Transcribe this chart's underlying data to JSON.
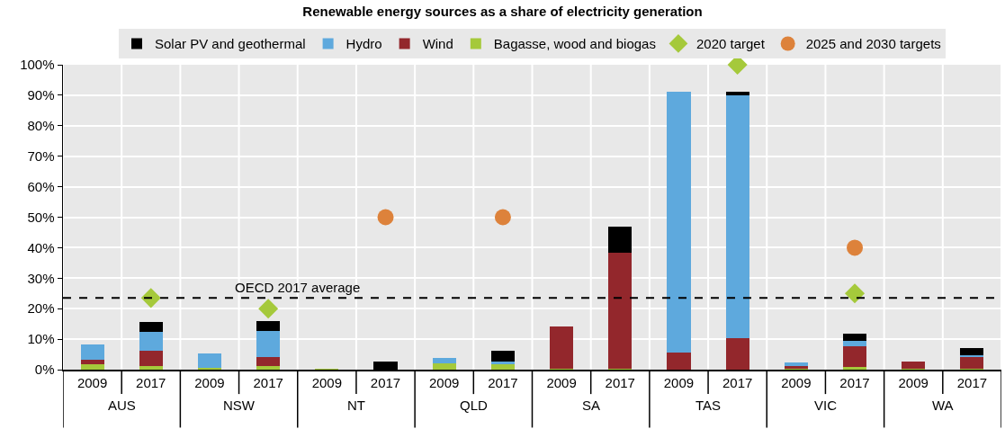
{
  "chart_data": {
    "type": "bar",
    "title": "Renewable energy sources as a share of electricity generation",
    "categories": [
      "2009",
      "2017",
      "2009",
      "2017",
      "2009",
      "2017",
      "2009",
      "2017",
      "2009",
      "2017",
      "2009",
      "2017",
      "2009",
      "2017",
      "2009",
      "2017"
    ],
    "stacked": true,
    "series": [
      {
        "name": "Bagasse, wood and biogas",
        "color": "#a5c93b",
        "values": [
          1.8,
          1.2,
          0.6,
          1.3,
          0.2,
          0,
          2.2,
          1.8,
          0.3,
          0.4,
          0,
          0,
          0.3,
          1.0,
          0.2,
          0.2
        ]
      },
      {
        "name": "Wind",
        "color": "#93272c",
        "values": [
          1.3,
          4.9,
          0,
          2.7,
          0,
          0,
          0,
          0,
          13.8,
          38,
          5.7,
          10.3,
          1.0,
          6.8,
          2.6,
          4.0
        ]
      },
      {
        "name": "Hydro",
        "color": "#5ea9dd",
        "values": [
          5.1,
          6.4,
          4.6,
          8.7,
          0,
          0,
          1.5,
          1.0,
          0,
          0,
          85.4,
          79.8,
          1.0,
          1.7,
          0,
          0.5
        ]
      },
      {
        "name": "Solar PV and geothermal",
        "color": "#000000",
        "values": [
          0,
          3.1,
          0,
          3.2,
          0,
          2.6,
          0,
          3.4,
          0,
          8.6,
          0,
          1.1,
          0,
          2.2,
          0,
          2.3
        ]
      },
      {
        "name": "2020 target",
        "type": "scatter",
        "marker": "diamond",
        "color": "#a5c93b",
        "values": [
          null,
          23.5,
          null,
          20,
          null,
          null,
          null,
          null,
          null,
          null,
          null,
          100,
          null,
          25,
          null,
          null
        ]
      },
      {
        "name": "2025 and 2030 targets",
        "type": "scatter",
        "marker": "circle",
        "color": "#dd823b",
        "values": [
          null,
          null,
          null,
          null,
          null,
          50,
          null,
          50,
          null,
          null,
          null,
          null,
          null,
          40,
          null,
          null
        ]
      }
    ],
    "ylim": [
      0,
      100
    ],
    "yticks": [
      {
        "value": 0,
        "label": "0%"
      },
      {
        "value": 10,
        "label": "10%"
      },
      {
        "value": 20,
        "label": "20%"
      },
      {
        "value": 30,
        "label": "30%"
      },
      {
        "value": 40,
        "label": "40%"
      },
      {
        "value": 50,
        "label": "50%"
      },
      {
        "value": 60,
        "label": "60%"
      },
      {
        "value": 70,
        "label": "70%"
      },
      {
        "value": 80,
        "label": "80%"
      },
      {
        "value": 90,
        "label": "90%"
      },
      {
        "value": 100,
        "label": "100%"
      }
    ],
    "ref_lines": [
      {
        "axis": "y",
        "value": 23.5,
        "label": "OECD 2017 average",
        "color": "#000000",
        "line_style": "dashed"
      }
    ],
    "annotations": [
      "AUS",
      "NSW",
      "NT",
      "QLD",
      "SA",
      "TAS",
      "VIC",
      "WA"
    ],
    "grid": true,
    "legend": "top"
  }
}
